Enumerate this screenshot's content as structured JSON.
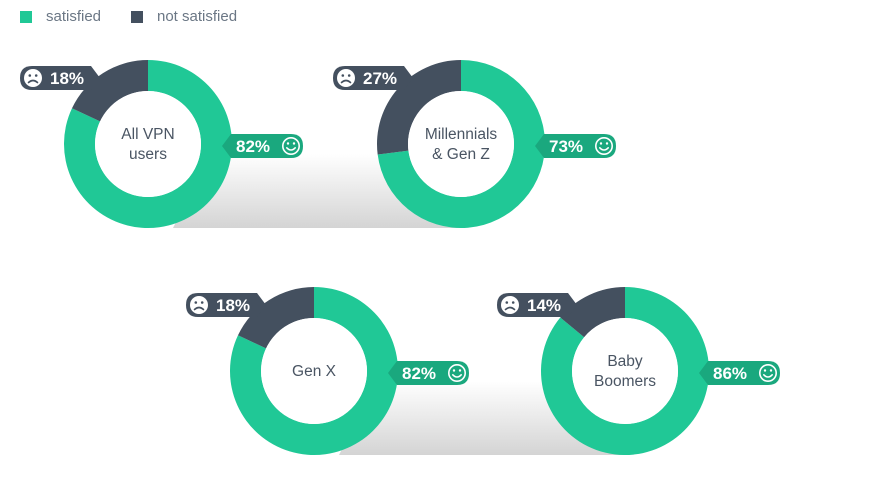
{
  "legend": {
    "satisfied_label": "satisfied",
    "not_satisfied_label": "not satisfied"
  },
  "colors": {
    "satisfied": "#20c896",
    "not_satisfied": "#44505f",
    "satisfied_badge": "#1aa87e"
  },
  "icons": {
    "satisfied": "smiley-face-icon",
    "not_satisfied": "sad-face-icon"
  },
  "chart_data": {
    "type": "pie",
    "variant": "donut",
    "series_names": [
      "satisfied",
      "not satisfied"
    ],
    "charts": [
      {
        "label_lines": [
          "All VPN",
          "users"
        ],
        "satisfied": 82,
        "not_satisfied": 18,
        "satisfied_text": "82%",
        "not_satisfied_text": "18%"
      },
      {
        "label_lines": [
          "Millennials",
          "& Gen Z"
        ],
        "satisfied": 73,
        "not_satisfied": 27,
        "satisfied_text": "73%",
        "not_satisfied_text": "27%"
      },
      {
        "label_lines": [
          "Gen X"
        ],
        "satisfied": 82,
        "not_satisfied": 18,
        "satisfied_text": "82%",
        "not_satisfied_text": "18%"
      },
      {
        "label_lines": [
          "Baby",
          "Boomers"
        ],
        "satisfied": 86,
        "not_satisfied": 14,
        "satisfied_text": "86%",
        "not_satisfied_text": "14%"
      }
    ]
  }
}
